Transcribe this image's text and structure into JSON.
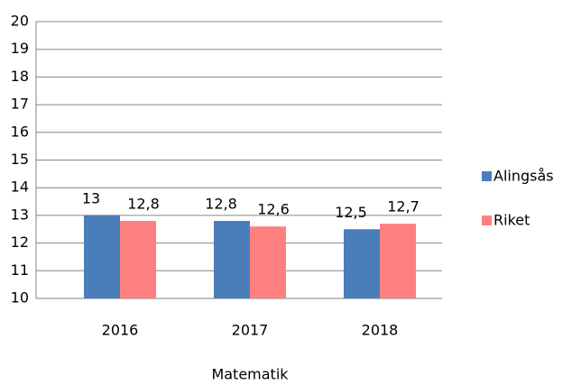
{
  "chart_data": {
    "type": "bar",
    "x_label": "Matematik",
    "categories": [
      "2016",
      "2017",
      "2018"
    ],
    "series": [
      {
        "name": "Alingsås",
        "color": "#4a7ebb",
        "values": [
          13,
          12.8,
          12.5
        ],
        "value_labels": [
          "13",
          "12,8",
          "12,5"
        ]
      },
      {
        "name": "Riket",
        "color": "#ff8080",
        "values": [
          12.8,
          12.6,
          12.7
        ],
        "value_labels": [
          "12,8",
          "12,6",
          "12,7"
        ]
      }
    ],
    "ylim": [
      10,
      20
    ],
    "yticks": [
      10,
      11,
      12,
      13,
      14,
      15,
      16,
      17,
      18,
      19,
      20
    ],
    "grid": true,
    "legend": "right"
  }
}
